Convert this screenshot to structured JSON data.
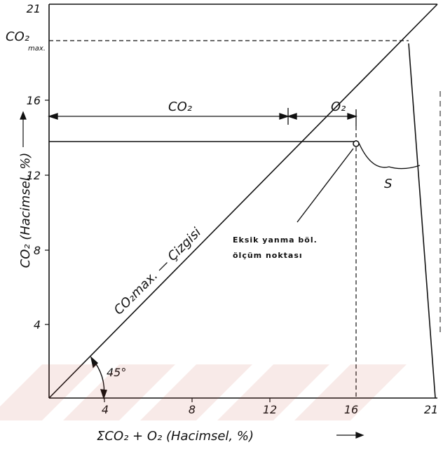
{
  "diagram": {
    "x_ticks": [
      "4",
      "8",
      "12",
      "16",
      "21"
    ],
    "y_ticks": [
      "4",
      "8",
      "12",
      "16",
      "21"
    ],
    "x_axis_label": "ΣCO₂ + O₂ (Hacimsel, %)",
    "y_axis_label": "CO₂ (Hacimsel, %)",
    "co2_max_label": "CO₂",
    "co2_max_subscript": "max.",
    "diagonal_label": "CO₂max. — Çizgisi",
    "angle_label": "45°",
    "co2_span_label": "CO₂",
    "o2_span_label": "O₂",
    "s_label": "S",
    "measurement_point_label_line1": "Eksik yanma böl.",
    "measurement_point_label_line2": "ölçüm noktası",
    "co2_max_value": 19.3,
    "measurement_point": {
      "x": 16.5,
      "y": 12.6
    }
  }
}
